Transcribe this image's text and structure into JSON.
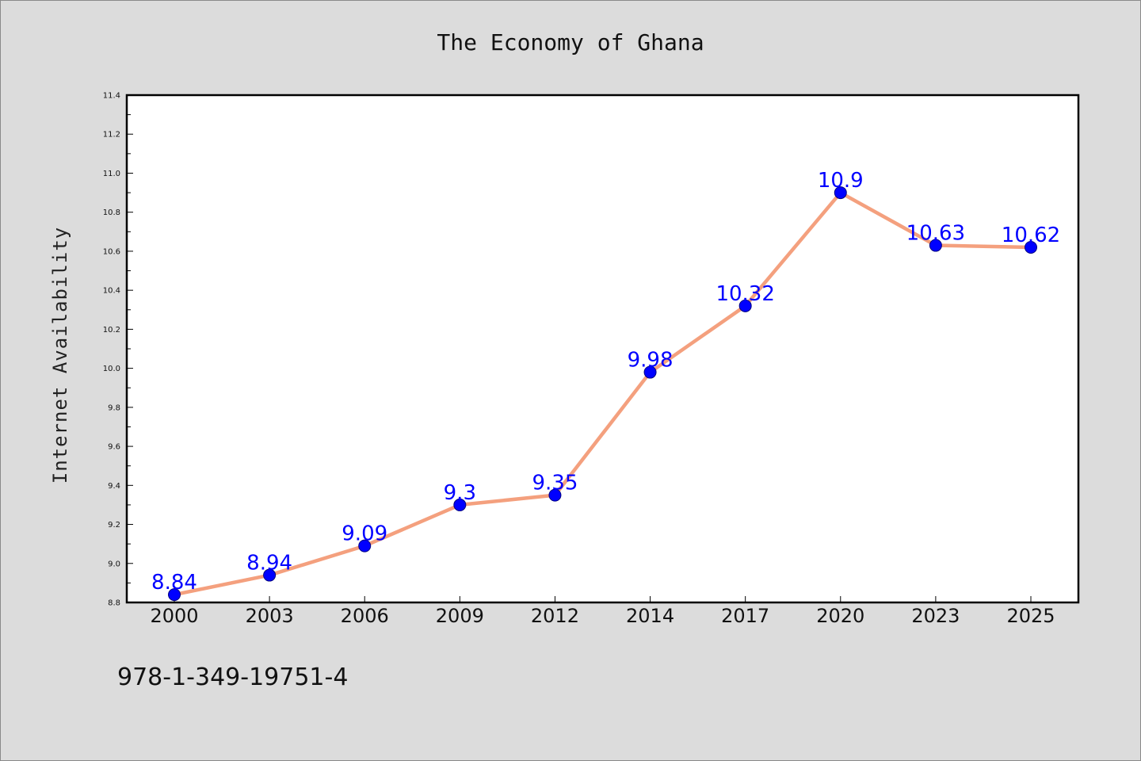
{
  "chart_data": {
    "type": "line",
    "title": "The Economy of Ghana",
    "xlabel": "",
    "ylabel": "Internet Availability",
    "categories": [
      "2000",
      "2003",
      "2006",
      "2009",
      "2012",
      "2014",
      "2017",
      "2020",
      "2023",
      "2025"
    ],
    "series": [
      {
        "values": [
          8.84,
          8.94,
          9.09,
          9.3,
          9.35,
          9.98,
          10.32,
          10.9,
          10.63,
          10.62
        ]
      }
    ],
    "data_labels": [
      "8.84",
      "8.94",
      "9.09",
      "9.3",
      "9.35",
      "9.98",
      "10.32",
      "10.9",
      "10.63",
      "10.62"
    ],
    "ylim": [
      8.8,
      11.4
    ],
    "yticks": [
      "8.8",
      "9.0",
      "9.2",
      "9.4",
      "9.6",
      "9.8",
      "10.0",
      "10.2",
      "10.4",
      "10.6",
      "10.8",
      "11.0",
      "11.2",
      "11.4"
    ],
    "grid": false,
    "legend": "none"
  },
  "footnote": "978-1-349-19751-4",
  "colors": {
    "background": "#dcdcdc",
    "plot_background": "#ffffff",
    "line": "#f4a07e",
    "marker_fill": "#0000ff",
    "marker_edge": "#000080",
    "data_label": "#0000ff",
    "axis": "#000000"
  }
}
